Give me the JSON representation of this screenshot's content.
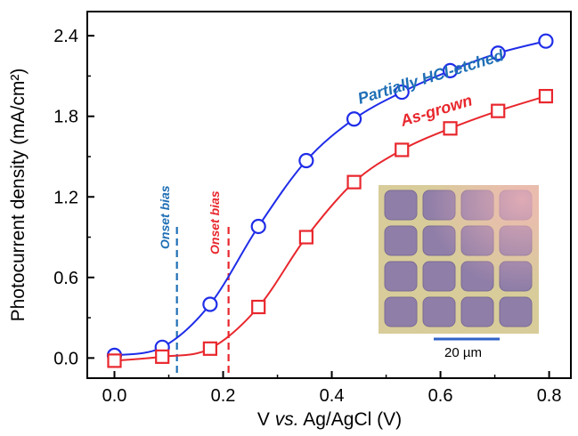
{
  "chart_data": {
    "type": "line",
    "xlabel_prefix": "V ",
    "xlabel_italic": "vs.",
    "xlabel_suffix": " Ag/AgCl (V)",
    "ylabel": "Photocurrent density (mA/cm²)",
    "xlim": [
      -0.05,
      0.84
    ],
    "ylim": [
      -0.15,
      2.58
    ],
    "x_ticks": [
      "0.0",
      "0.2",
      "0.4",
      "0.6",
      "0.8"
    ],
    "y_ticks": [
      "0.0",
      "0.6",
      "1.2",
      "1.8",
      "2.4"
    ],
    "grid": false,
    "series": [
      {
        "name": "Partially HCl-etched",
        "color": "#1f2de8",
        "label_color": "#1f6fb5",
        "marker": "circle",
        "x": [
          0.0,
          0.088,
          0.176,
          0.265,
          0.353,
          0.441,
          0.529,
          0.618,
          0.706,
          0.794
        ],
        "y": [
          0.02,
          0.08,
          0.4,
          0.98,
          1.47,
          1.78,
          1.98,
          2.14,
          2.27,
          2.36
        ]
      },
      {
        "name": "As-grown",
        "color": "#e8272d",
        "label_color": "#e8272d",
        "marker": "square",
        "x": [
          0.0,
          0.088,
          0.176,
          0.265,
          0.353,
          0.441,
          0.529,
          0.618,
          0.706,
          0.794
        ],
        "y": [
          -0.02,
          0.01,
          0.07,
          0.38,
          0.9,
          1.31,
          1.55,
          1.71,
          1.84,
          1.95
        ]
      }
    ],
    "annotations": [
      {
        "text": "Onset bias",
        "x": 0.115,
        "color": "#1f6fb5",
        "series": "Partially HCl-etched"
      },
      {
        "text": "Onset bias",
        "x": 0.21,
        "color": "#e8272d",
        "series": "As-grown"
      }
    ],
    "inset": {
      "content": "optical micrograph of patterned square array",
      "scale_bar_label": "20 µm",
      "scale_bar_color": "#2f62c8"
    }
  }
}
